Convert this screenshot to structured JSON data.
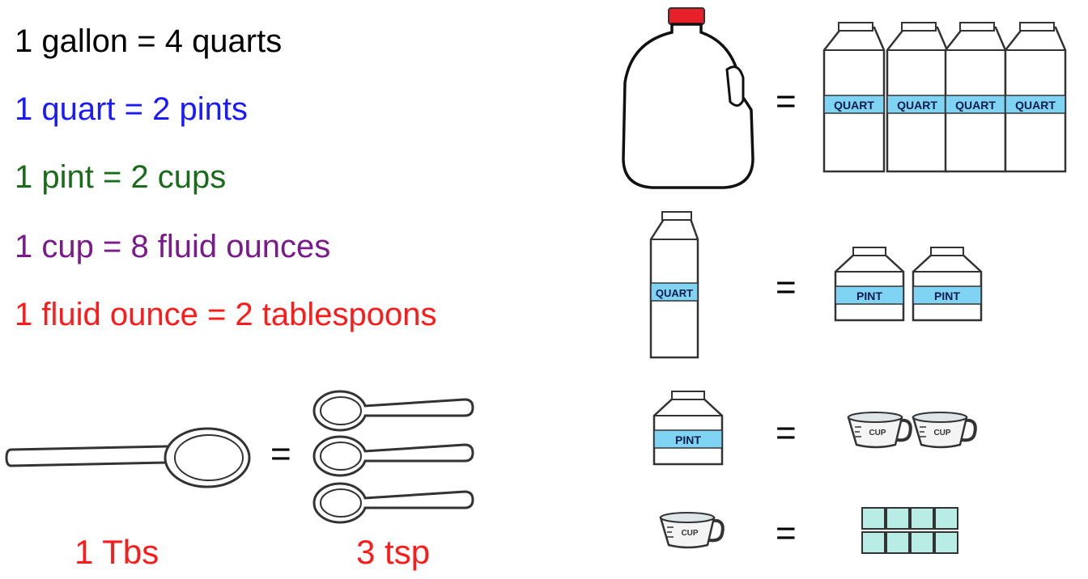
{
  "rules": [
    {
      "text": "1 gallon = 4 quarts",
      "color": "#000000"
    },
    {
      "text": "1 quart = 2 pints",
      "color": "#1a1aff"
    },
    {
      "text": "1 pint = 2 cups",
      "color": "#1a6b1a"
    },
    {
      "text": "1 cup = 8 fluid ounces",
      "color": "#7a1a8c"
    },
    {
      "text": "1 fluid ounce = 2 tablespoons",
      "color": "#ff1a1a"
    }
  ],
  "spoons": {
    "equals": "=",
    "tbs_label": "1 Tbs",
    "tsp_label": "3 tsp",
    "label_color": "#ff1a1a"
  },
  "equals_sign": "=",
  "carton_labels": {
    "quart": "QUART",
    "pint": "PINT",
    "cup": "CUP"
  },
  "colors": {
    "carton_band": "#7fd4f4",
    "ounce_square": "#b8ece4",
    "cap": "#e8202a"
  }
}
